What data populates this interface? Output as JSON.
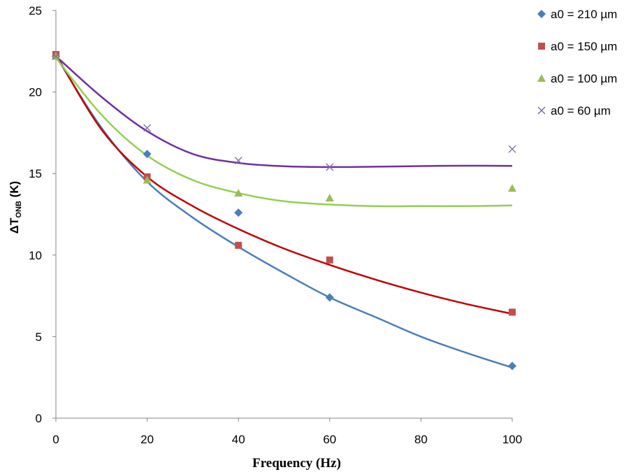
{
  "chart_data": {
    "type": "scatter",
    "xlabel": "Frequency (Hz)",
    "ylabel": {
      "main": "ΔT",
      "subscript": "ONB",
      "suffix": " (K)"
    },
    "xlim": [
      0,
      100
    ],
    "ylim": [
      0,
      25
    ],
    "xticks": [
      0,
      20,
      40,
      60,
      80,
      100
    ],
    "yticks": [
      0,
      5,
      10,
      15,
      20,
      25
    ],
    "grid": false,
    "legend_position": "top-right",
    "series": [
      {
        "name": "a0 = 210 µm",
        "marker": "diamond",
        "marker_color": "#4A7EBB",
        "line_color": "#4A7EBB",
        "x": [
          0,
          20,
          40,
          60,
          100
        ],
        "y": [
          22.2,
          16.2,
          12.6,
          7.4,
          3.2
        ],
        "trend": [
          [
            0,
            22.2
          ],
          [
            10,
            17.8
          ],
          [
            20,
            14.5
          ],
          [
            30,
            12.3
          ],
          [
            40,
            10.5
          ],
          [
            50,
            8.9
          ],
          [
            60,
            7.4
          ],
          [
            70,
            6.2
          ],
          [
            80,
            5.0
          ],
          [
            90,
            4.0
          ],
          [
            100,
            3.1
          ]
        ]
      },
      {
        "name": "a0 = 150 µm",
        "marker": "square",
        "marker_color": "#C0504D",
        "line_color": "#C00000",
        "x": [
          0,
          20,
          40,
          60,
          100
        ],
        "y": [
          22.3,
          14.8,
          10.6,
          9.7,
          6.5
        ],
        "trend": [
          [
            0,
            22.3
          ],
          [
            10,
            17.7
          ],
          [
            20,
            14.8
          ],
          [
            30,
            13.0
          ],
          [
            40,
            11.6
          ],
          [
            50,
            10.4
          ],
          [
            60,
            9.4
          ],
          [
            70,
            8.5
          ],
          [
            80,
            7.7
          ],
          [
            90,
            7.0
          ],
          [
            100,
            6.4
          ]
        ]
      },
      {
        "name": "a0 = 100 µm",
        "marker": "triangle",
        "marker_color": "#9BBB59",
        "line_color": "#92D050",
        "x": [
          0,
          20,
          40,
          60,
          100
        ],
        "y": [
          22.2,
          14.6,
          13.8,
          13.5,
          14.1
        ],
        "trend": [
          [
            0,
            22.1
          ],
          [
            10,
            18.6
          ],
          [
            20,
            16.1
          ],
          [
            30,
            14.6
          ],
          [
            40,
            13.8
          ],
          [
            50,
            13.3
          ],
          [
            60,
            13.1
          ],
          [
            70,
            13.0
          ],
          [
            80,
            13.0
          ],
          [
            90,
            13.0
          ],
          [
            100,
            13.05
          ]
        ]
      },
      {
        "name": "a0 = 60 µm",
        "marker": "cross",
        "marker_color": "#8064A2",
        "line_color": "#7030A0",
        "x": [
          0,
          20,
          40,
          60,
          100
        ],
        "y": [
          22.2,
          17.8,
          15.8,
          15.4,
          16.5
        ],
        "trend": [
          [
            0,
            22.2
          ],
          [
            10,
            19.7
          ],
          [
            20,
            17.6
          ],
          [
            30,
            16.2
          ],
          [
            40,
            15.65
          ],
          [
            50,
            15.45
          ],
          [
            60,
            15.4
          ],
          [
            70,
            15.42
          ],
          [
            80,
            15.46
          ],
          [
            90,
            15.48
          ],
          [
            100,
            15.47
          ]
        ]
      }
    ]
  }
}
